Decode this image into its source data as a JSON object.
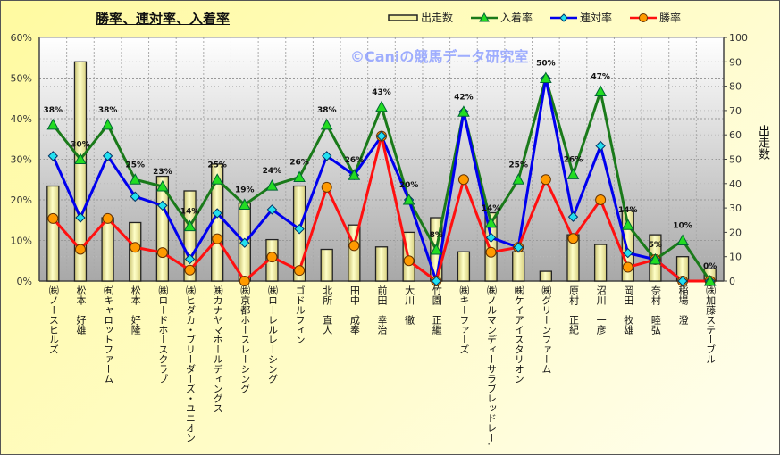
{
  "chart_data": {
    "type": "bar+line",
    "title": "勝率、連対率、入着率",
    "watermark": "©Caniの競馬データ研究室",
    "y_left": {
      "ticks": [
        "0%",
        "10%",
        "20%",
        "30%",
        "40%",
        "50%",
        "60%"
      ],
      "range": [
        0,
        60
      ],
      "unit": "%"
    },
    "y_right": {
      "label": "出走数",
      "ticks": [
        "0",
        "10",
        "20",
        "30",
        "40",
        "50",
        "60",
        "70",
        "80",
        "90",
        "100"
      ],
      "range": [
        0,
        100
      ]
    },
    "grid": true,
    "legend_position": "top",
    "categories": [
      "㈱ノースヒルズ",
      "松本　好雄",
      "㈲キャロットファーム",
      "松本　好隆",
      "㈱ロードホースクラブ",
      "㈱ヒダカ・ブリーダーズ・ユニオン",
      "㈱カナヤマホールディングス",
      "㈱京都ホースレーシング",
      "㈱ローレルレーシング",
      "ゴドルフィン",
      "北所　直人",
      "田中　成奉",
      "前田　幸治",
      "大川　徹",
      "竹園　正繼",
      "㈱キーファーズ",
      "㈱ノルマンディーサラブレッドレー…",
      "㈱ケイアイスタリオン",
      "㈱グリーンファーム",
      "原村　正紀",
      "沼川　一彦",
      "岡田　牧雄",
      "奈村　睦弘",
      "稲場　澄",
      "㈱加藤ステーブル"
    ],
    "series": [
      {
        "name": "出走数",
        "type": "bar",
        "axis": "right",
        "color": "#f4f0a0",
        "values": [
          39,
          90,
          26,
          24,
          43,
          37,
          48,
          32,
          17,
          39,
          13,
          23,
          14,
          20,
          26,
          12,
          28,
          12,
          4,
          19,
          15,
          29,
          19,
          10,
          5
        ]
      },
      {
        "name": "入着率",
        "type": "line",
        "axis": "left",
        "color": "#1a7a1a",
        "marker": "triangle",
        "marker_color": "#22dd22",
        "values": [
          38.5,
          30.0,
          38.5,
          25.0,
          23.3,
          13.5,
          25.0,
          18.8,
          23.5,
          25.6,
          38.5,
          26.1,
          42.9,
          20.0,
          7.7,
          41.7,
          14.3,
          25.0,
          50.0,
          26.3,
          46.7,
          13.8,
          5.3,
          10.0,
          0
        ],
        "data_labels": [
          "38%",
          "30%",
          "38%",
          "25%",
          "23%",
          "14%",
          "25%",
          "19%",
          "24%",
          "26%",
          "38%",
          "26%",
          "43%",
          "20%",
          "8%",
          "42%",
          "14%",
          "25%",
          "50%",
          "26%",
          "47%",
          "14%",
          "5%",
          "10%",
          "0%"
        ]
      },
      {
        "name": "連対率",
        "type": "line",
        "axis": "left",
        "color": "#0000ee",
        "marker": "diamond",
        "marker_color": "#22e0f0",
        "values": [
          30.8,
          15.6,
          30.8,
          20.8,
          18.6,
          5.4,
          16.7,
          9.4,
          17.6,
          12.8,
          30.8,
          26.1,
          35.7,
          20.0,
          0,
          41.7,
          10.7,
          8.3,
          50.0,
          15.8,
          33.3,
          6.9,
          5.3,
          0,
          0
        ]
      },
      {
        "name": "勝率",
        "type": "line",
        "axis": "left",
        "color": "#ff1010",
        "marker": "circle",
        "marker_color": "#ff9a00",
        "values": [
          15.4,
          7.8,
          15.4,
          8.3,
          7.0,
          2.7,
          10.4,
          0,
          5.9,
          2.6,
          23.1,
          8.7,
          35.7,
          5.0,
          0,
          25.0,
          7.1,
          8.3,
          25.0,
          10.5,
          20.0,
          3.4,
          5.3,
          0,
          0
        ]
      }
    ]
  }
}
